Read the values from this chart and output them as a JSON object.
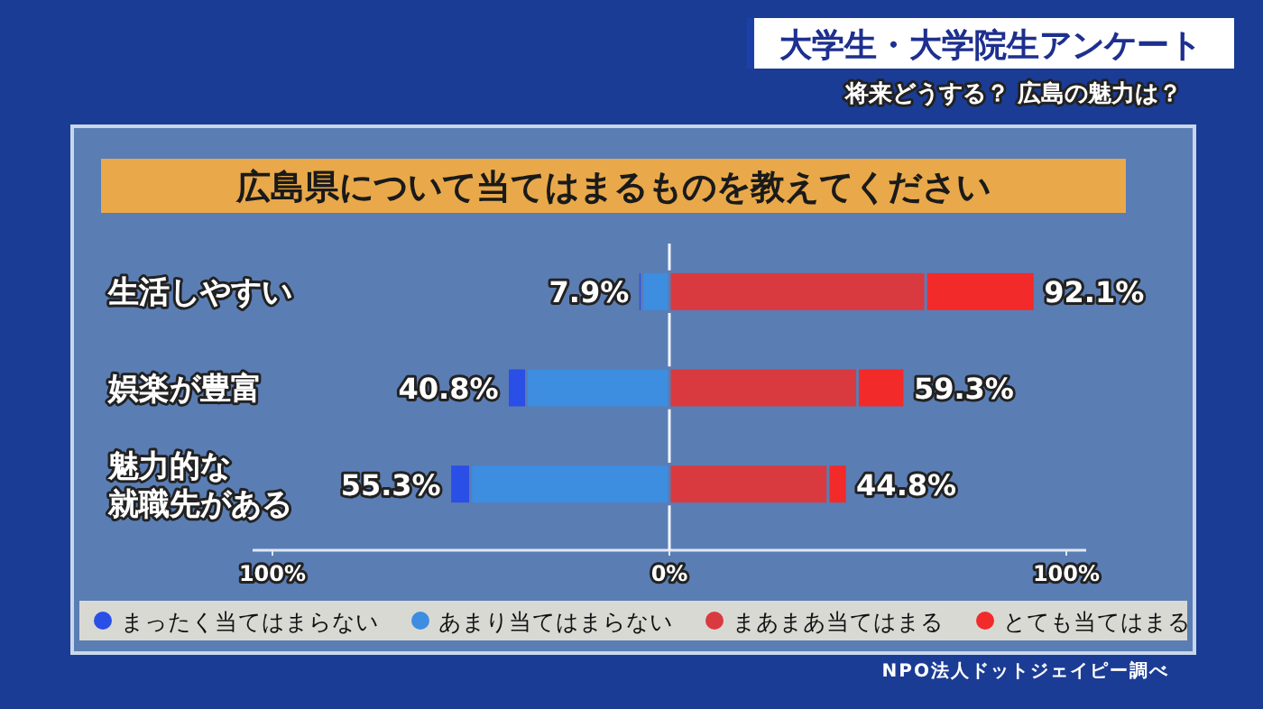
{
  "chart_data": {
    "type": "bar",
    "orientation": "horizontal",
    "stacked": true,
    "title": "広島県について当てはまるものを教えてください",
    "annotations": [
      "大学生・大学院生アンケート",
      "将来どうする？ 広島の魅力は？",
      "NPO法人ドットジェイピー調べ"
    ],
    "categories": [
      "生活しやすい",
      "娯楽が豊富",
      "魅力的な就職先がある"
    ],
    "ref_lines": [
      {
        "axis": "x",
        "value": 0,
        "color": "#f2f5fa"
      }
    ],
    "series": [
      {
        "name": "あまり当てはまらない",
        "color": "#3d8de0",
        "values": [
          -6.9,
          -36.0,
          -50.1
        ]
      },
      {
        "name": "まったく当てはまらない",
        "color": "#2a4fe6",
        "values": [
          -1.0,
          -4.8,
          -5.2
        ]
      },
      {
        "name": "まあまあ当てはまる",
        "color": "#d93a40",
        "values": [
          64.6,
          47.4,
          40.0
        ]
      },
      {
        "name": "とても当てはまる",
        "color": "#f22a2a",
        "values": [
          27.5,
          11.9,
          4.8
        ]
      }
    ],
    "totals": [
      [
        "7.9%",
        "92.1%"
      ],
      [
        "40.8%",
        "59.3%"
      ],
      [
        "55.3%",
        "44.8%"
      ]
    ],
    "xlim": [
      -105,
      105
    ],
    "xticks": [
      {
        "value": -100,
        "label": "100%"
      },
      {
        "value": 0,
        "label": "0%"
      },
      {
        "value": 100,
        "label": "100%"
      }
    ],
    "legend": "bottom"
  }
}
